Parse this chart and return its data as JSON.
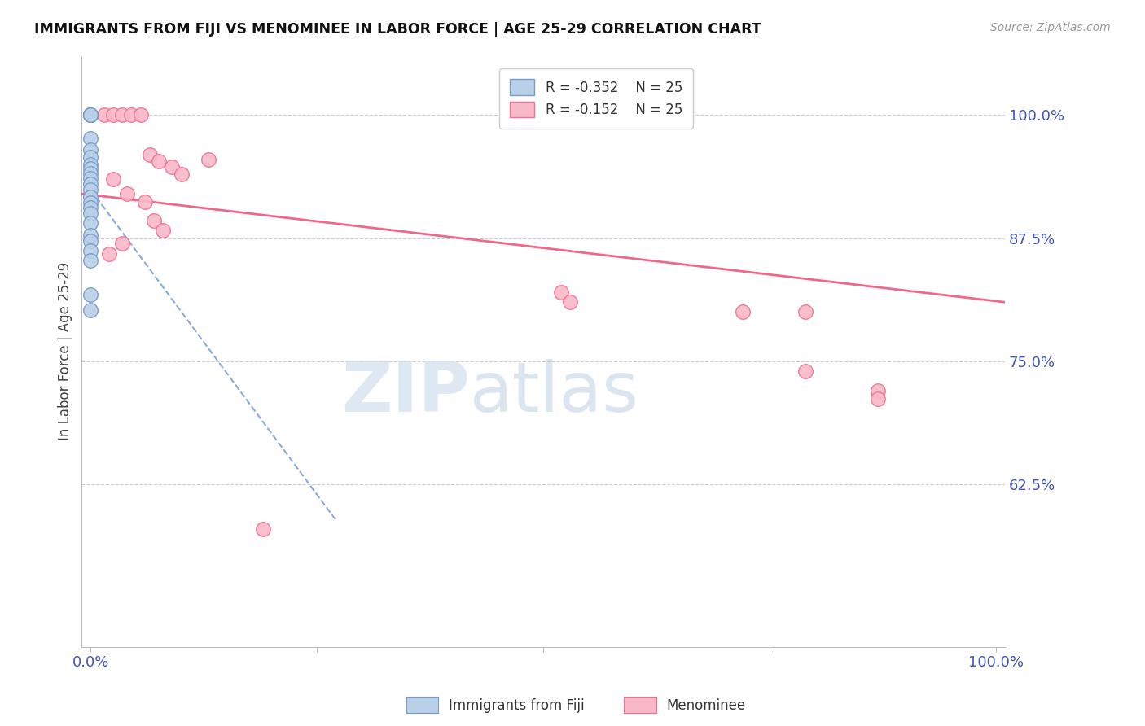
{
  "title": "IMMIGRANTS FROM FIJI VS MENOMINEE IN LABOR FORCE | AGE 25-29 CORRELATION CHART",
  "source": "Source: ZipAtlas.com",
  "ylabel": "In Labor Force | Age 25-29",
  "xlim": [
    -0.01,
    1.01
  ],
  "ylim": [
    0.46,
    1.06
  ],
  "x_ticks": [
    0.0,
    0.25,
    0.5,
    0.75,
    1.0
  ],
  "x_tick_labels": [
    "0.0%",
    "",
    "",
    "",
    "100.0%"
  ],
  "y_ticks_right": [
    0.625,
    0.75,
    0.875,
    1.0
  ],
  "y_tick_labels_right": [
    "62.5%",
    "75.0%",
    "87.5%",
    "100.0%"
  ],
  "legend_r1": "R = -0.352",
  "legend_n1": "N = 25",
  "legend_r2": "R = -0.152",
  "legend_n2": "N = 25",
  "fiji_color": "#b8d0e8",
  "menominee_color": "#f9b8c8",
  "fiji_edge_color": "#7799cc",
  "menominee_edge_color": "#f07090",
  "trend_fiji_color": "#88aadd",
  "trend_menominee_color": "#f06888",
  "background_color": "#ffffff",
  "watermark_zip": "ZIP",
  "watermark_atlas": "atlas",
  "grid_color": "#cccccc",
  "fiji_x": [
    0.0,
    0.0,
    0.0,
    0.0,
    0.0,
    0.0,
    0.0,
    0.0,
    0.0,
    0.0,
    0.0,
    0.0,
    0.0,
    0.0,
    0.0,
    0.0,
    0.0,
    0.0,
    0.0,
    0.0,
    0.0,
    0.0,
    0.0,
    0.0,
    0.0
  ],
  "fiji_y": [
    1.0,
    1.0,
    1.0,
    1.0,
    1.0,
    0.976,
    0.965,
    0.957,
    0.95,
    0.946,
    0.941,
    0.936,
    0.93,
    0.924,
    0.917,
    0.911,
    0.906,
    0.9,
    0.89,
    0.878,
    0.872,
    0.862,
    0.852,
    0.818,
    0.802
  ],
  "menominee_x": [
    0.015,
    0.025,
    0.035,
    0.045,
    0.055,
    0.065,
    0.075,
    0.09,
    0.1,
    0.025,
    0.04,
    0.06,
    0.07,
    0.08,
    0.035,
    0.02,
    0.13,
    0.52,
    0.72,
    0.79,
    0.87,
    0.87,
    0.79,
    0.53,
    0.19
  ],
  "menominee_y": [
    1.0,
    1.0,
    1.0,
    1.0,
    1.0,
    0.96,
    0.953,
    0.947,
    0.94,
    0.935,
    0.92,
    0.912,
    0.893,
    0.883,
    0.87,
    0.859,
    0.955,
    0.82,
    0.8,
    0.74,
    0.72,
    0.712,
    0.8,
    0.81,
    0.58
  ],
  "fiji_trend_start_x": 0.0,
  "fiji_trend_start_y": 0.924,
  "fiji_trend_end_x": 0.27,
  "fiji_trend_end_y": 0.59,
  "menominee_trend_start_x": -0.01,
  "menominee_trend_start_y": 0.92,
  "menominee_trend_end_x": 1.01,
  "menominee_trend_end_y": 0.81
}
